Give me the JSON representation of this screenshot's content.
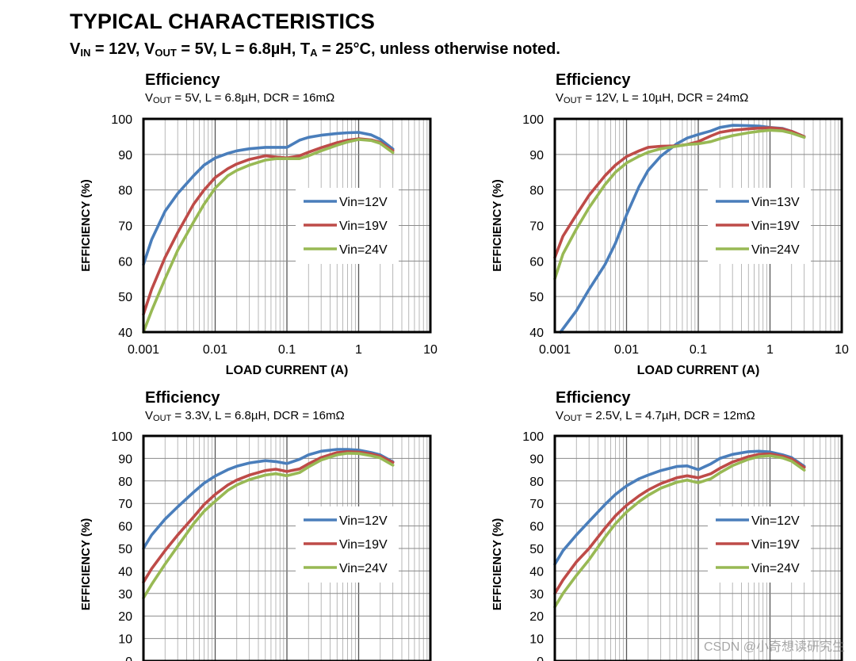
{
  "header": {
    "title": "TYPICAL CHARACTERISTICS",
    "conditions": {
      "vin_label": "V",
      "vin_sub": "IN",
      "vin_value": " = 12V, ",
      "vout_label": "V",
      "vout_sub": "OUT",
      "vout_value": " = 5V, L = 6.8µH, ",
      "ta_label": "T",
      "ta_sub": "A",
      "ta_value": " = 25°C, unless otherwise noted."
    }
  },
  "watermark": "CSDN @小奇想读研究生",
  "colors": {
    "blue": "#4a7ebb",
    "red": "#be4b48",
    "green": "#98b954",
    "grid": "#a6a6a6",
    "frame": "#000000"
  },
  "chart_data": [
    {
      "type": "line",
      "title": "Efficiency",
      "subtitle": {
        "v": "V",
        "sub": "OUT",
        "rest": " = 5V, L = 6.8µH, DCR = 16mΩ"
      },
      "xlabel": "LOAD CURRENT  (A)",
      "ylabel": "EFFICIENCY  (%)",
      "xscale": "log",
      "xlim": [
        0.001,
        10
      ],
      "ylim": [
        40,
        100
      ],
      "ystep": 10,
      "xtick_labels": [
        "0.001",
        "0.01",
        "0.1",
        "1",
        "10"
      ],
      "grid": true,
      "legend": "center-right",
      "series": [
        {
          "name": "Vin=12V",
          "color": "#4a7ebb",
          "x": [
            0.001,
            0.0013,
            0.002,
            0.003,
            0.005,
            0.007,
            0.01,
            0.015,
            0.02,
            0.03,
            0.05,
            0.07,
            0.1,
            0.15,
            0.2,
            0.3,
            0.5,
            0.7,
            1,
            1.5,
            2,
            3
          ],
          "y": [
            59,
            66,
            74,
            79,
            84,
            87,
            89,
            90.3,
            91,
            91.6,
            92,
            92,
            92,
            94,
            94.8,
            95.4,
            95.9,
            96.1,
            96.2,
            95.5,
            94.3,
            91.5
          ]
        },
        {
          "name": "Vin=19V",
          "color": "#be4b48",
          "x": [
            0.001,
            0.0013,
            0.002,
            0.003,
            0.005,
            0.007,
            0.01,
            0.015,
            0.02,
            0.03,
            0.05,
            0.07,
            0.1,
            0.15,
            0.2,
            0.3,
            0.5,
            0.7,
            1,
            1.5,
            2,
            3
          ],
          "y": [
            45,
            52,
            61,
            68,
            76,
            80,
            83.5,
            86,
            87.3,
            88.6,
            89.6,
            89.3,
            89,
            89.6,
            90.6,
            91.9,
            93.3,
            94,
            94.4,
            94.1,
            93.4,
            91
          ]
        },
        {
          "name": "Vin=24V",
          "color": "#98b954",
          "x": [
            0.001,
            0.0013,
            0.002,
            0.003,
            0.005,
            0.007,
            0.01,
            0.015,
            0.02,
            0.03,
            0.05,
            0.07,
            0.1,
            0.15,
            0.2,
            0.3,
            0.5,
            0.7,
            1,
            1.5,
            2,
            3
          ],
          "y": [
            40,
            46,
            55,
            63,
            71,
            76,
            80.5,
            84,
            85.5,
            87,
            88.4,
            88.8,
            88.8,
            88.8,
            89.6,
            91,
            92.6,
            93.5,
            94.2,
            93.9,
            93.1,
            90.5
          ]
        }
      ]
    },
    {
      "type": "line",
      "title": "Efficiency",
      "subtitle": {
        "v": "V",
        "sub": "OUT",
        "rest": " = 12V, L = 10µH, DCR = 24mΩ"
      },
      "xlabel": "LOAD CURRENT  (A)",
      "ylabel": "EFFICIENCY  (%)",
      "xscale": "log",
      "xlim": [
        0.001,
        10
      ],
      "ylim": [
        40,
        100
      ],
      "ystep": 10,
      "xtick_labels": [
        "0.001",
        "0.01",
        "0.1",
        "1",
        "10"
      ],
      "grid": true,
      "legend": "center-right",
      "series": [
        {
          "name": "Vin=13V",
          "color": "#4a7ebb",
          "x": [
            0.0012,
            0.002,
            0.003,
            0.005,
            0.007,
            0.01,
            0.015,
            0.02,
            0.03,
            0.05,
            0.07,
            0.1,
            0.15,
            0.2,
            0.3,
            0.5,
            0.7,
            1,
            1.5,
            2,
            3
          ],
          "y": [
            40,
            46,
            52,
            59,
            65,
            73,
            81,
            85.5,
            89.5,
            93,
            94.6,
            95.6,
            96.6,
            97.6,
            98.2,
            98.1,
            98,
            97.6,
            97.3,
            96.5,
            95
          ]
        },
        {
          "name": "Vin=19V",
          "color": "#be4b48",
          "x": [
            0.001,
            0.0013,
            0.002,
            0.003,
            0.005,
            0.007,
            0.01,
            0.015,
            0.02,
            0.03,
            0.05,
            0.07,
            0.1,
            0.15,
            0.2,
            0.3,
            0.5,
            0.7,
            1,
            1.5,
            2,
            3
          ],
          "y": [
            61,
            67,
            73,
            78.5,
            84,
            87,
            89.4,
            91,
            92,
            92.3,
            92.4,
            92.8,
            93.6,
            95.2,
            96.2,
            96.8,
            97.2,
            97.4,
            97.5,
            97.2,
            96.5,
            95
          ]
        },
        {
          "name": "Vin=24V",
          "color": "#98b954",
          "x": [
            0.001,
            0.0013,
            0.002,
            0.003,
            0.005,
            0.007,
            0.01,
            0.015,
            0.02,
            0.03,
            0.05,
            0.07,
            0.1,
            0.15,
            0.2,
            0.3,
            0.5,
            0.7,
            1,
            1.5,
            2,
            3
          ],
          "y": [
            55,
            62,
            69,
            75,
            81.5,
            85,
            87.6,
            89.5,
            90.6,
            91.6,
            92.3,
            92.8,
            93,
            93.6,
            94.4,
            95.3,
            96.1,
            96.5,
            96.8,
            96.6,
            96,
            94.8
          ]
        }
      ]
    },
    {
      "type": "line",
      "title": "Efficiency",
      "subtitle": {
        "v": "V",
        "sub": "OUT",
        "rest": " = 3.3V, L = 6.8µH, DCR = 16mΩ"
      },
      "xlabel": "",
      "ylabel": "EFFICIENCY  (%)",
      "xscale": "log",
      "xlim": [
        0.001,
        10
      ],
      "ylim": [
        0,
        100
      ],
      "ystep": 10,
      "xtick_labels": [],
      "grid": true,
      "legend": "center-right",
      "series": [
        {
          "name": "Vin=12V",
          "color": "#4a7ebb",
          "x": [
            0.001,
            0.0013,
            0.002,
            0.003,
            0.005,
            0.007,
            0.01,
            0.015,
            0.02,
            0.03,
            0.05,
            0.07,
            0.1,
            0.15,
            0.2,
            0.3,
            0.5,
            0.7,
            1,
            1.5,
            2,
            3
          ],
          "y": [
            50,
            56,
            63,
            68.5,
            75,
            79,
            82.2,
            85,
            86.5,
            88,
            89,
            88.6,
            87.7,
            89.6,
            91.6,
            93.2,
            94,
            94,
            93.7,
            92.6,
            91.6,
            88.5
          ]
        },
        {
          "name": "Vin=19V",
          "color": "#be4b48",
          "x": [
            0.001,
            0.0013,
            0.002,
            0.003,
            0.005,
            0.007,
            0.01,
            0.015,
            0.02,
            0.03,
            0.05,
            0.07,
            0.1,
            0.15,
            0.2,
            0.3,
            0.5,
            0.7,
            1,
            1.5,
            2,
            3
          ],
          "y": [
            35,
            41,
            49,
            56,
            64,
            69.5,
            74,
            78.2,
            80.4,
            82.6,
            84.6,
            85.2,
            84.2,
            85.3,
            87.6,
            90.4,
            92.6,
            93,
            92.8,
            92,
            91,
            88.2
          ]
        },
        {
          "name": "Vin=24V",
          "color": "#98b954",
          "x": [
            0.001,
            0.0013,
            0.002,
            0.003,
            0.005,
            0.007,
            0.01,
            0.015,
            0.02,
            0.03,
            0.05,
            0.07,
            0.1,
            0.15,
            0.2,
            0.3,
            0.5,
            0.7,
            1,
            1.5,
            2,
            3
          ],
          "y": [
            28,
            34,
            43,
            51,
            61,
            66.5,
            71,
            75.8,
            78.2,
            80.6,
            82.6,
            83.2,
            82.3,
            83.7,
            86.2,
            89.3,
            91.6,
            92.3,
            92.2,
            91.2,
            90.2,
            87
          ]
        }
      ]
    },
    {
      "type": "line",
      "title": "Efficiency",
      "subtitle": {
        "v": "V",
        "sub": "OUT",
        "rest": " = 2.5V, L = 4.7µH, DCR = 12mΩ"
      },
      "xlabel": "",
      "ylabel": "EFFICIENCY  (%)",
      "xscale": "log",
      "xlim": [
        0.001,
        10
      ],
      "ylim": [
        0,
        100
      ],
      "ystep": 10,
      "xtick_labels": [],
      "grid": true,
      "legend": "center-right",
      "series": [
        {
          "name": "Vin=12V",
          "color": "#4a7ebb",
          "x": [
            0.001,
            0.0013,
            0.002,
            0.003,
            0.005,
            0.007,
            0.01,
            0.015,
            0.02,
            0.03,
            0.05,
            0.07,
            0.1,
            0.15,
            0.2,
            0.3,
            0.5,
            0.7,
            1,
            1.5,
            2,
            3
          ],
          "y": [
            43,
            49,
            56,
            62,
            69.5,
            74,
            77.8,
            81,
            82.6,
            84.6,
            86.4,
            86.7,
            85,
            87.6,
            90,
            91.8,
            93,
            93.2,
            92.9,
            91.6,
            90.4,
            86.5
          ]
        },
        {
          "name": "Vin=19V",
          "color": "#be4b48",
          "x": [
            0.001,
            0.0013,
            0.002,
            0.003,
            0.005,
            0.007,
            0.01,
            0.015,
            0.02,
            0.03,
            0.05,
            0.07,
            0.1,
            0.15,
            0.2,
            0.3,
            0.5,
            0.7,
            1,
            1.5,
            2,
            3
          ],
          "y": [
            30,
            36,
            44,
            50,
            59,
            64.5,
            69.2,
            73.4,
            76,
            78.8,
            81.4,
            82.3,
            81.4,
            83.2,
            85.6,
            88.4,
            90.8,
            91.8,
            92,
            91,
            89.8,
            86
          ]
        },
        {
          "name": "Vin=24V",
          "color": "#98b954",
          "x": [
            0.001,
            0.0013,
            0.002,
            0.003,
            0.005,
            0.007,
            0.01,
            0.015,
            0.02,
            0.03,
            0.05,
            0.07,
            0.1,
            0.15,
            0.2,
            0.3,
            0.5,
            0.7,
            1,
            1.5,
            2,
            3
          ],
          "y": [
            24,
            30,
            38,
            45,
            55,
            61,
            66.2,
            70.8,
            73.6,
            76.8,
            79.4,
            80.4,
            79.2,
            81,
            83.6,
            86.8,
            89.6,
            90.8,
            91.2,
            90.2,
            88.8,
            84.8
          ]
        }
      ]
    }
  ]
}
